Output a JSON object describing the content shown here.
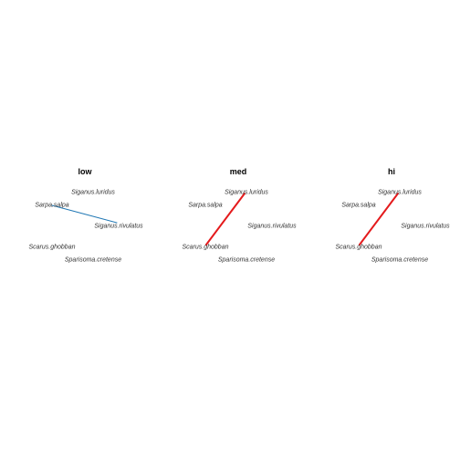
{
  "figure": {
    "panels": [
      {
        "title": "low",
        "nodes": [
          "Siganus.luridus",
          "Sarpa.salpa",
          "Siganus.rivulatus",
          "Scarus.ghobban",
          "Sparisoma.cretense"
        ],
        "edges": [
          {
            "from": "Sarpa.salpa",
            "to": "Siganus.rivulatus",
            "color": "#1f77b4"
          }
        ]
      },
      {
        "title": "med",
        "nodes": [
          "Siganus.luridus",
          "Sarpa.salpa",
          "Siganus.rivulatus",
          "Scarus.ghobban",
          "Sparisoma.cretense"
        ],
        "edges": [
          {
            "from": "Siganus.luridus",
            "to": "Scarus.ghobban",
            "color": "#e41a1c"
          }
        ]
      },
      {
        "title": "hi",
        "nodes": [
          "Siganus.luridus",
          "Sarpa.salpa",
          "Siganus.rivulatus",
          "Scarus.ghobban",
          "Sparisoma.cretense"
        ],
        "edges": [
          {
            "from": "Siganus.luridus",
            "to": "Scarus.ghobban",
            "color": "#e41a1c"
          }
        ]
      }
    ]
  }
}
